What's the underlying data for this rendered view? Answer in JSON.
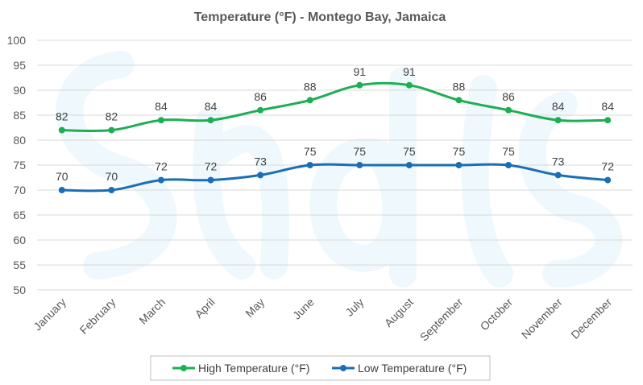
{
  "chart_data": {
    "type": "line",
    "title": "Temperature (°F) - Montego Bay, Jamaica",
    "xlabel": "",
    "ylabel": "",
    "categories": [
      "January",
      "February",
      "March",
      "April",
      "May",
      "June",
      "July",
      "August",
      "September",
      "October",
      "November",
      "December"
    ],
    "ylim": [
      50,
      100
    ],
    "yticks": [
      "50",
      "55",
      "60",
      "65",
      "70",
      "75",
      "80",
      "85",
      "90",
      "95",
      "100"
    ],
    "grid": true,
    "legend_position": "bottom",
    "series": [
      {
        "name": "High Temperature (°F)",
        "color": "#1eae53",
        "values": [
          82,
          82,
          84,
          84,
          86,
          88,
          91,
          91,
          88,
          86,
          84,
          84
        ]
      },
      {
        "name": "Low Temperature (°F)",
        "color": "#1a6eb5",
        "values": [
          70,
          70,
          72,
          72,
          73,
          75,
          75,
          75,
          75,
          75,
          73,
          72
        ]
      }
    ]
  }
}
